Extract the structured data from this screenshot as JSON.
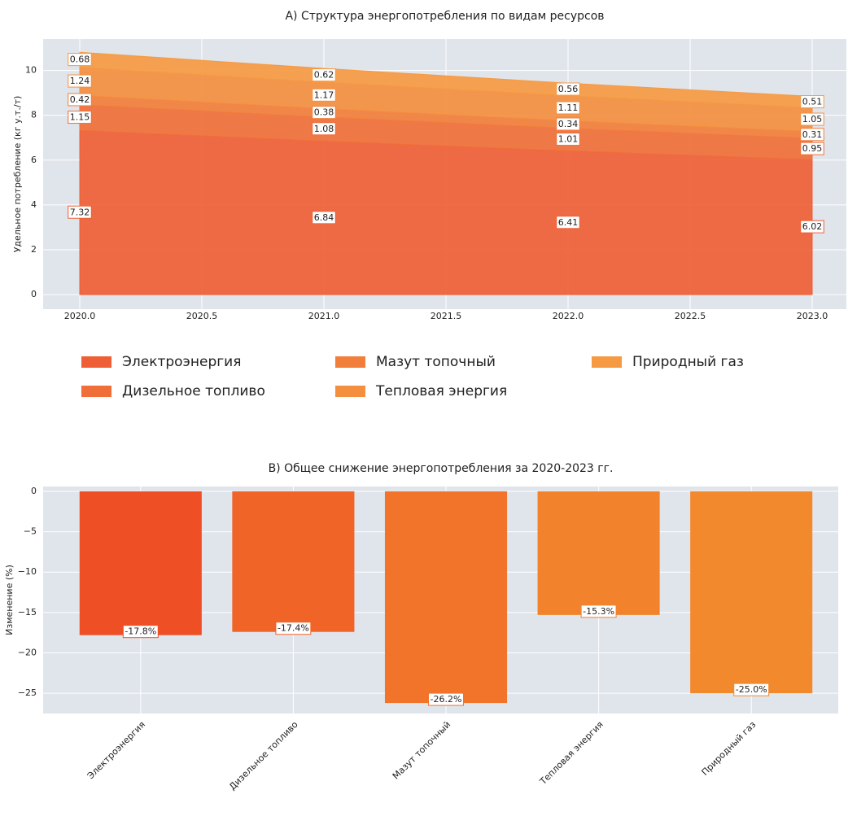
{
  "chart_data": [
    {
      "type": "area",
      "title": "A) Структура энергопотребления по видам ресурсов",
      "y_label": "Удельное потребление (кг у.т./т)",
      "x": [
        2020,
        2021,
        2022,
        2023
      ],
      "series": [
        {
          "name": "Электроэнергия",
          "color": "#ef5f35",
          "values": [
            7.32,
            6.84,
            6.41,
            6.02
          ]
        },
        {
          "name": "Дизельное топливо",
          "color": "#f06f38",
          "values": [
            1.15,
            1.08,
            1.01,
            0.95
          ]
        },
        {
          "name": "Мазут топочный",
          "color": "#f27e3b",
          "values": [
            0.42,
            0.38,
            0.34,
            0.31
          ]
        },
        {
          "name": "Тепловая энергия",
          "color": "#f48f3f",
          "values": [
            1.24,
            1.17,
            1.11,
            1.05
          ]
        },
        {
          "name": "Природный газ",
          "color": "#f59a42",
          "values": [
            0.68,
            0.62,
            0.56,
            0.51
          ]
        }
      ],
      "stacked": true,
      "legend": "below",
      "grid": true,
      "xlim": [
        2019.85,
        2023.14
      ],
      "ylim": [
        -0.65,
        11.4
      ],
      "xticks": [
        {
          "value": 2020,
          "label": "2020.0"
        },
        2020.5,
        {
          "value": 2021,
          "label": "2021.0"
        },
        2021.5,
        {
          "value": 2022,
          "label": "2022.0"
        },
        2022.5,
        {
          "value": 2023,
          "label": "2023.0"
        }
      ],
      "yticks": [
        0,
        2,
        4,
        6,
        8,
        10
      ]
    },
    {
      "type": "bar",
      "title": "B) Общее снижение энергопотребления за 2020-2023 гг.",
      "y_label": "Изменение (%)",
      "categories": [
        "Электроэнергия",
        "Дизельное топливо",
        "Мазут топочный",
        "Тепловая энергия",
        "Природный газ"
      ],
      "values": [
        -17.8,
        -17.4,
        -26.2,
        -15.3,
        -25.0
      ],
      "value_labels": [
        "-17.8%",
        "-17.4%",
        "-26.2%",
        "-15.3%",
        "-25.0%"
      ],
      "colors": [
        "#ef4f25",
        "#f06427",
        "#f1742a",
        "#f2832c",
        "#f3892d"
      ],
      "grid": true,
      "ylim": [
        -27.5,
        0.6
      ],
      "yticks": [
        0,
        {
          "value": -5,
          "label": "−5"
        },
        {
          "value": -10,
          "label": "−10"
        },
        {
          "value": -15,
          "label": "−15"
        },
        {
          "value": -20,
          "label": "−20"
        },
        {
          "value": -25,
          "label": "−25"
        }
      ]
    }
  ]
}
